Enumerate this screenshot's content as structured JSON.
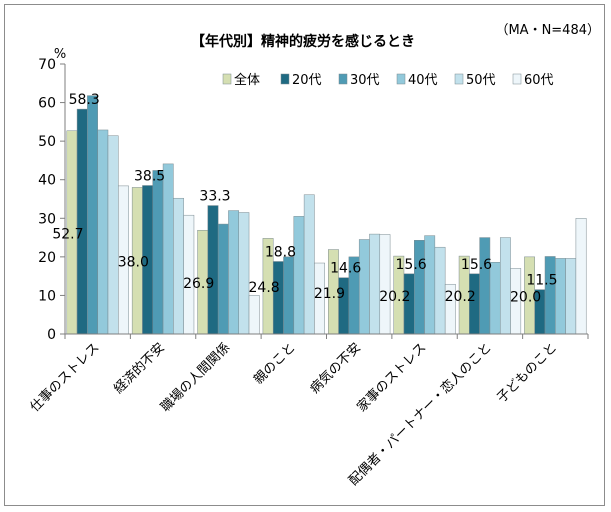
{
  "chart_data": {
    "type": "bar",
    "title": "【年代別】精神的疲労を感じるとき",
    "note": "（MA・N=484）",
    "yunit": "%",
    "ylim": [
      0,
      70
    ],
    "yticks": [
      0,
      10,
      20,
      30,
      40,
      50,
      60,
      70
    ],
    "grid": false,
    "legend_position": "top-right",
    "categories": [
      "仕事のストレス",
      "経済的不安",
      "職場の人間関係",
      "親のこと",
      "病気の不安",
      "家事のストレス",
      "配偶者・パートナー・恋人のこと",
      "子どものこと"
    ],
    "series": [
      {
        "name": "全体",
        "color": "#d5dfb2",
        "values": [
          52.7,
          38.0,
          26.9,
          24.8,
          21.9,
          20.2,
          20.2,
          20.0
        ]
      },
      {
        "name": "20代",
        "color": "#1f6a82",
        "values": [
          58.3,
          38.5,
          33.3,
          18.8,
          14.6,
          15.6,
          15.6,
          11.5
        ]
      },
      {
        "name": "30代",
        "color": "#4f9bb4",
        "values": [
          61.8,
          42.4,
          28.5,
          20.0,
          20.0,
          24.3,
          25.0,
          20.1
        ]
      },
      {
        "name": "40代",
        "color": "#92c9db",
        "values": [
          52.9,
          44.1,
          32.0,
          30.5,
          24.5,
          25.5,
          18.6,
          19.6
        ]
      },
      {
        "name": "50代",
        "color": "#c2e1ec",
        "values": [
          51.4,
          35.2,
          31.5,
          36.1,
          25.9,
          22.5,
          25.0,
          19.6
        ]
      },
      {
        "name": "60代",
        "color": "#eef6fa",
        "values": [
          38.4,
          30.8,
          10.0,
          18.4,
          25.8,
          12.9,
          17.0,
          30.0
        ]
      }
    ],
    "data_labels": [
      {
        "text": "52.7",
        "category": 0,
        "series": 0,
        "value": 52.7
      },
      {
        "text": "58.3",
        "category": 0,
        "series": 1,
        "value": 58.3
      },
      {
        "text": "38.0",
        "category": 1,
        "series": 0,
        "value": 38.0
      },
      {
        "text": "38.5",
        "category": 1,
        "series": 1,
        "value": 38.5
      },
      {
        "text": "26.9",
        "category": 2,
        "series": 0,
        "value": 26.9
      },
      {
        "text": "33.3",
        "category": 2,
        "series": 1,
        "value": 33.3
      },
      {
        "text": "24.8",
        "category": 3,
        "series": 0,
        "value": 24.8
      },
      {
        "text": "18.8",
        "category": 3,
        "series": 1,
        "value": 18.8
      },
      {
        "text": "21.9",
        "category": 4,
        "series": 0,
        "value": 21.9
      },
      {
        "text": "14.6",
        "category": 4,
        "series": 1,
        "value": 14.6
      },
      {
        "text": "20.2",
        "category": 5,
        "series": 0,
        "value": 20.2
      },
      {
        "text": "15.6",
        "category": 5,
        "series": 1,
        "value": 15.6
      },
      {
        "text": "20.2",
        "category": 6,
        "series": 0,
        "value": 20.2
      },
      {
        "text": "15.6",
        "category": 6,
        "series": 1,
        "value": 15.6
      },
      {
        "text": "20.0",
        "category": 7,
        "series": 0,
        "value": 20.0
      },
      {
        "text": "11.5",
        "category": 7,
        "series": 1,
        "value": 11.5
      }
    ]
  }
}
